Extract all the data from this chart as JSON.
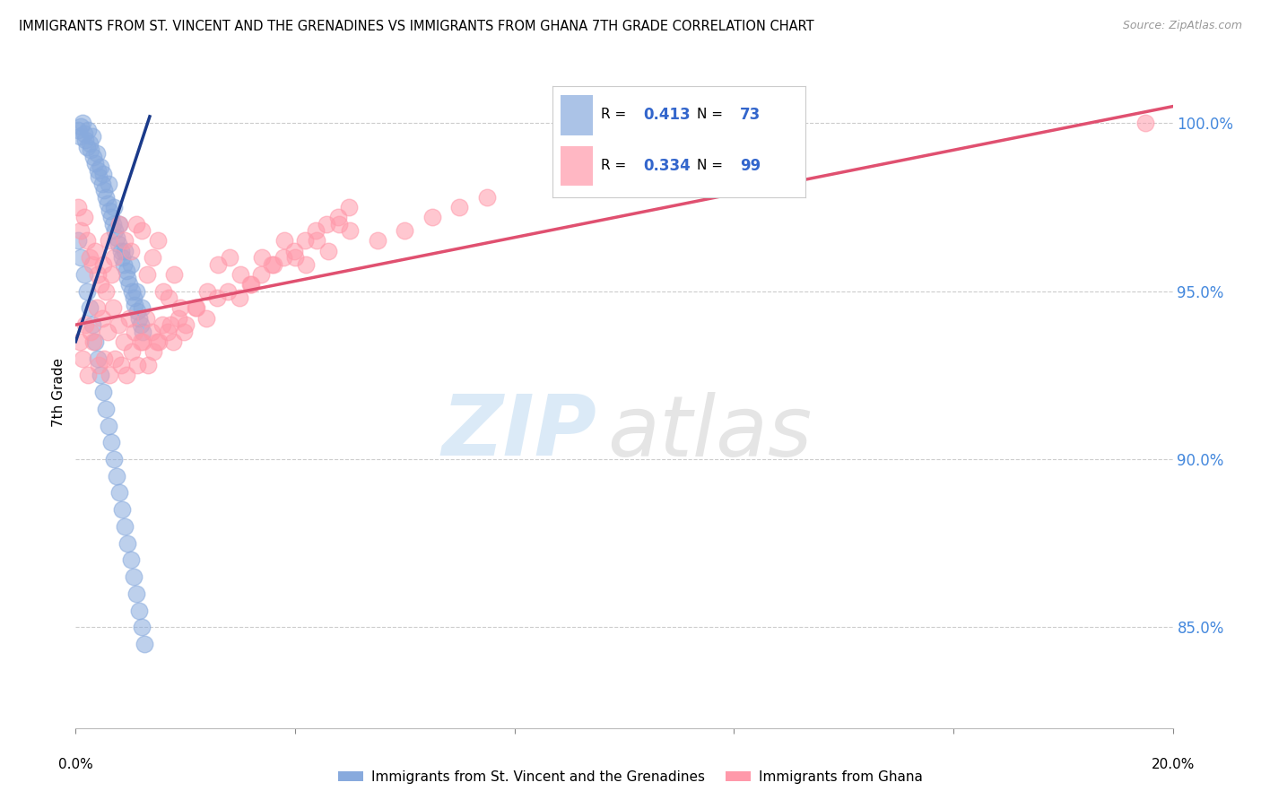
{
  "title": "IMMIGRANTS FROM ST. VINCENT AND THE GRENADINES VS IMMIGRANTS FROM GHANA 7TH GRADE CORRELATION CHART",
  "source": "Source: ZipAtlas.com",
  "ylabel": "7th Grade",
  "R_blue": 0.413,
  "N_blue": 73,
  "R_pink": 0.334,
  "N_pink": 99,
  "blue_color": "#88AADD",
  "pink_color": "#FF99AA",
  "blue_line_color": "#1a3a8a",
  "pink_line_color": "#e05070",
  "legend_blue_label": "Immigrants from St. Vincent and the Grenadines",
  "legend_pink_label": "Immigrants from Ghana",
  "blue_x": [
    0.05,
    0.08,
    0.1,
    0.12,
    0.15,
    0.18,
    0.2,
    0.22,
    0.25,
    0.28,
    0.3,
    0.32,
    0.35,
    0.38,
    0.4,
    0.42,
    0.45,
    0.48,
    0.5,
    0.52,
    0.55,
    0.58,
    0.6,
    0.62,
    0.65,
    0.68,
    0.7,
    0.72,
    0.75,
    0.78,
    0.8,
    0.82,
    0.85,
    0.88,
    0.9,
    0.92,
    0.95,
    0.98,
    1.0,
    1.02,
    1.05,
    1.08,
    1.1,
    1.12,
    1.15,
    1.18,
    1.2,
    1.22,
    0.05,
    0.1,
    0.15,
    0.2,
    0.25,
    0.3,
    0.35,
    0.4,
    0.45,
    0.5,
    0.55,
    0.6,
    0.65,
    0.7,
    0.75,
    0.8,
    0.85,
    0.9,
    0.95,
    1.0,
    1.05,
    1.1,
    1.15,
    1.2,
    1.25
  ],
  "blue_y": [
    99.8,
    99.6,
    99.9,
    100.0,
    99.7,
    99.5,
    99.3,
    99.8,
    99.4,
    99.2,
    99.6,
    99.0,
    98.8,
    99.1,
    98.6,
    98.4,
    98.7,
    98.2,
    98.5,
    98.0,
    97.8,
    97.6,
    98.2,
    97.4,
    97.2,
    97.0,
    97.5,
    96.8,
    96.6,
    96.4,
    97.0,
    96.2,
    96.0,
    95.8,
    96.2,
    95.6,
    95.4,
    95.2,
    95.8,
    95.0,
    94.8,
    94.6,
    95.0,
    94.4,
    94.2,
    94.0,
    94.5,
    93.8,
    96.5,
    96.0,
    95.5,
    95.0,
    94.5,
    94.0,
    93.5,
    93.0,
    92.5,
    92.0,
    91.5,
    91.0,
    90.5,
    90.0,
    89.5,
    89.0,
    88.5,
    88.0,
    87.5,
    87.0,
    86.5,
    86.0,
    85.5,
    85.0,
    84.5
  ],
  "pink_x": [
    0.05,
    0.1,
    0.15,
    0.2,
    0.25,
    0.3,
    0.35,
    0.4,
    0.45,
    0.5,
    0.55,
    0.6,
    0.65,
    0.7,
    0.8,
    0.9,
    1.0,
    1.1,
    1.2,
    1.3,
    1.4,
    1.5,
    1.6,
    1.7,
    1.8,
    1.9,
    2.0,
    2.2,
    2.4,
    2.6,
    2.8,
    3.0,
    3.2,
    3.4,
    3.6,
    3.8,
    4.0,
    4.2,
    4.4,
    4.6,
    4.8,
    5.0,
    5.5,
    6.0,
    6.5,
    7.0,
    7.5,
    0.08,
    0.18,
    0.28,
    0.38,
    0.48,
    0.58,
    0.68,
    0.78,
    0.88,
    0.98,
    1.08,
    1.18,
    1.28,
    1.38,
    1.48,
    1.58,
    1.68,
    1.78,
    1.88,
    1.98,
    2.18,
    2.38,
    2.58,
    2.78,
    2.98,
    3.18,
    3.38,
    3.58,
    3.78,
    3.98,
    4.18,
    4.38,
    4.58,
    4.78,
    4.98,
    0.12,
    0.22,
    0.32,
    0.42,
    0.52,
    0.62,
    0.72,
    0.82,
    0.92,
    1.02,
    1.12,
    1.22,
    1.32,
    1.42,
    1.52,
    1.72,
    19.5
  ],
  "pink_y": [
    97.5,
    96.8,
    97.2,
    96.5,
    96.0,
    95.8,
    96.2,
    95.5,
    95.2,
    95.8,
    95.0,
    96.5,
    95.5,
    96.0,
    97.0,
    96.5,
    96.2,
    97.0,
    96.8,
    95.5,
    96.0,
    96.5,
    95.0,
    94.8,
    95.5,
    94.5,
    94.0,
    94.5,
    95.0,
    95.8,
    96.0,
    95.5,
    95.2,
    96.0,
    95.8,
    96.5,
    96.0,
    95.8,
    96.5,
    96.2,
    97.0,
    96.8,
    96.5,
    96.8,
    97.2,
    97.5,
    97.8,
    93.5,
    94.0,
    93.8,
    94.5,
    94.2,
    93.8,
    94.5,
    94.0,
    93.5,
    94.2,
    93.8,
    93.5,
    94.2,
    93.8,
    93.5,
    94.0,
    93.8,
    93.5,
    94.2,
    93.8,
    94.5,
    94.2,
    94.8,
    95.0,
    94.8,
    95.2,
    95.5,
    95.8,
    96.0,
    96.2,
    96.5,
    96.8,
    97.0,
    97.2,
    97.5,
    93.0,
    92.5,
    93.5,
    92.8,
    93.0,
    92.5,
    93.0,
    92.8,
    92.5,
    93.2,
    92.8,
    93.5,
    92.8,
    93.2,
    93.5,
    94.0,
    100.0
  ]
}
